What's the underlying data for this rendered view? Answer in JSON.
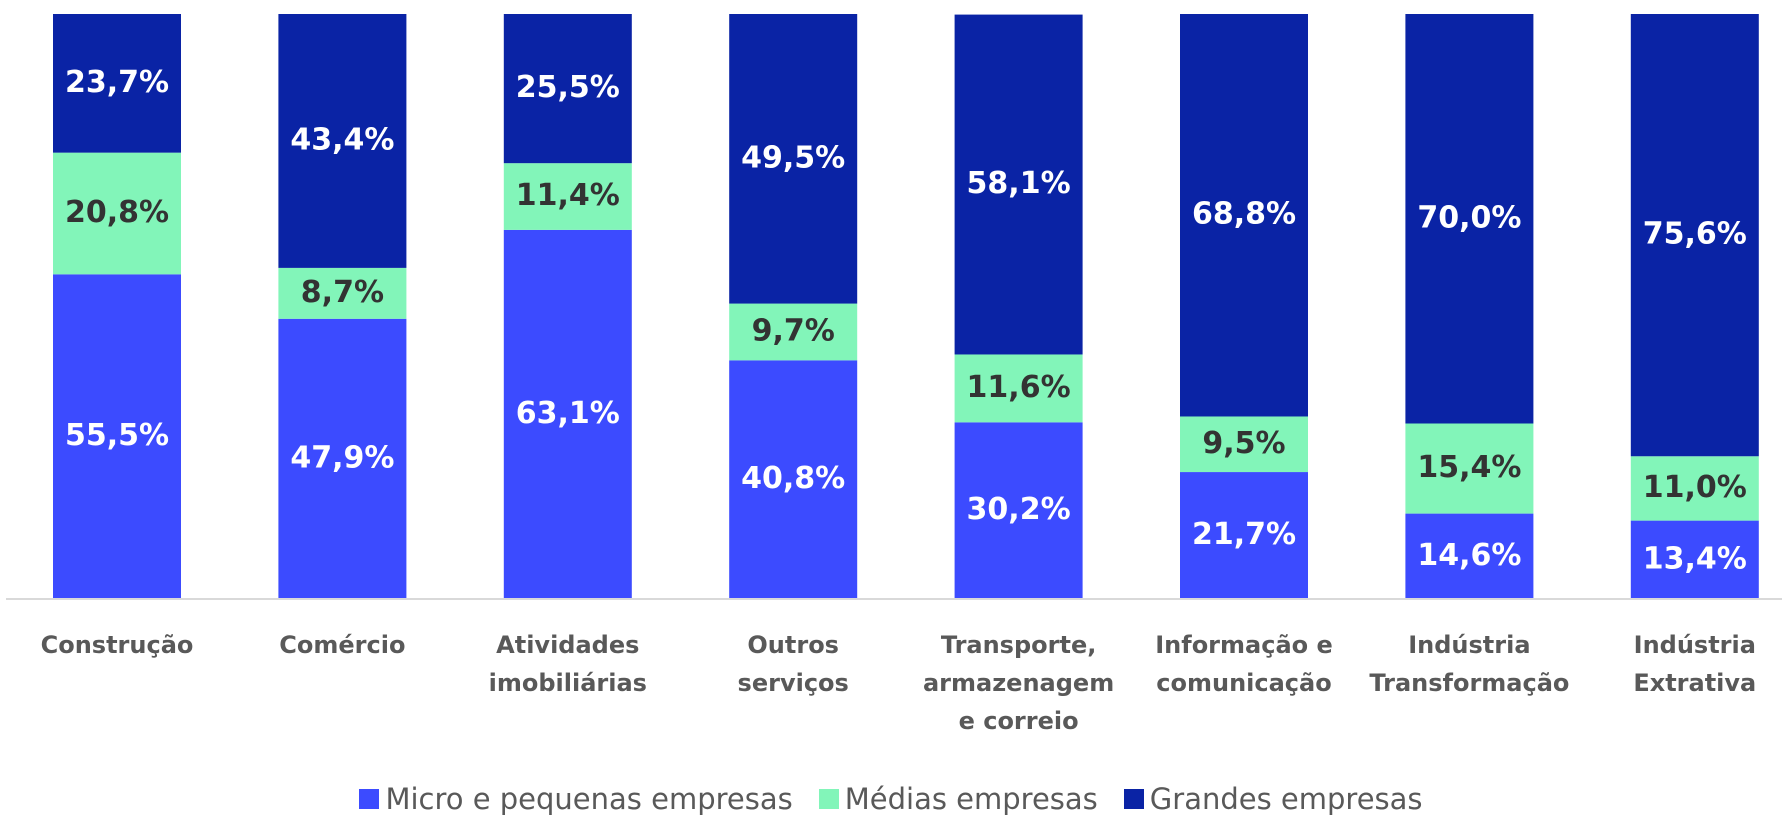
{
  "chart_data": {
    "type": "bar",
    "stacked": true,
    "categories": [
      "Construção",
      "Comércio",
      "Atividades imobiliárias",
      "Outros serviços",
      "Transporte, armazenagem e correio",
      "Informação e comunicação",
      "Indústria Transformação",
      "Indústria Extrativa"
    ],
    "series": [
      {
        "name": "Micro e pequenas empresas",
        "color": "#3c4bff",
        "label_color": "#ffffff",
        "values": [
          55.5,
          47.9,
          63.1,
          40.8,
          30.2,
          21.7,
          14.6,
          13.4
        ],
        "value_labels": [
          "55,5%",
          "47,9%",
          "63,1%",
          "40,8%",
          "30,2%",
          "21,7%",
          "14,6%",
          "13,4%"
        ]
      },
      {
        "name": "Médias empresas",
        "color": "#82f5b9",
        "label_color": "#333333",
        "values": [
          20.8,
          8.7,
          11.4,
          9.7,
          11.6,
          9.5,
          15.4,
          11.0
        ],
        "value_labels": [
          "20,8%",
          "8,7%",
          "11,4%",
          "9,7%",
          "11,6%",
          "9,5%",
          "15,4%",
          "11,0%"
        ]
      },
      {
        "name": "Grandes empresas",
        "color": "#0a23a5",
        "label_color": "#ffffff",
        "values": [
          23.7,
          43.4,
          25.5,
          49.5,
          58.1,
          68.8,
          70.0,
          75.6
        ],
        "value_labels": [
          "23,7%",
          "43,4%",
          "25,5%",
          "49,5%",
          "58,1%",
          "68,8%",
          "70,0%",
          "75,6%"
        ]
      }
    ],
    "ylim": [
      0,
      100
    ],
    "legend": "bottom"
  }
}
